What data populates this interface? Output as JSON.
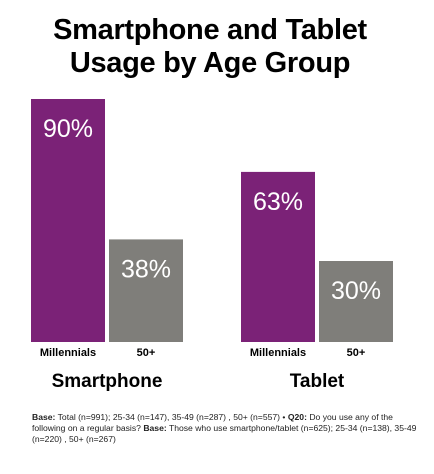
{
  "title_lines": [
    "Smartphone and Tablet",
    "Usage by Age Group"
  ],
  "colors": {
    "millennials": "#7b2277",
    "fifty_plus": "#7f7e7a",
    "bar_label": "#ffffff"
  },
  "chart_data": {
    "type": "bar",
    "title": "Smartphone and Tablet Usage by Age Group",
    "groups": [
      "Smartphone",
      "Tablet"
    ],
    "categories": [
      "Millennials",
      "50+"
    ],
    "series": [
      {
        "group": "Smartphone",
        "values": [
          90,
          38
        ],
        "labels": [
          "90%",
          "38%"
        ]
      },
      {
        "group": "Tablet",
        "values": [
          63,
          30
        ],
        "labels": [
          "63%",
          "30%"
        ]
      }
    ],
    "ylim": [
      0,
      100
    ],
    "grid": false,
    "legend": "none"
  },
  "footnote": {
    "base1_label": "Base:",
    "base1_text": " Total (n=991); 25-34 (n=147), 35-49 (n=287) , 50+ (n=557) • ",
    "q_label": "Q20:",
    "q_text": " Do you use any of the following on a regular basis? ",
    "base2_label": "Base:",
    "base2_text": " Those who use smartphone/tablet (n=625); 25-34 (n=138), 35-49 (n=220) , 50+ (n=267)"
  }
}
